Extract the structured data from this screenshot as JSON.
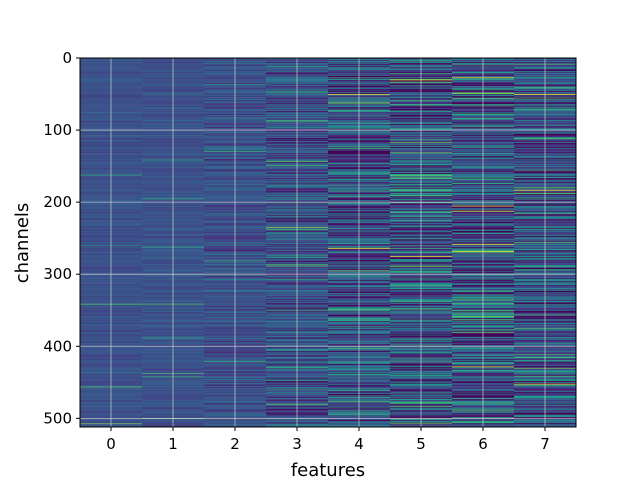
{
  "chart_data": {
    "type": "heatmap",
    "title": "",
    "xlabel": "features",
    "ylabel": "channels",
    "x_categories": [
      "0",
      "1",
      "2",
      "3",
      "4",
      "5",
      "6",
      "7"
    ],
    "y_range": [
      0,
      512
    ],
    "y_ticks": [
      "0",
      "100",
      "200",
      "300",
      "400",
      "500"
    ],
    "y_axis_inverted": true,
    "grid": true,
    "colormap": "viridis",
    "colors": {
      "low": "#440154",
      "background_typical": "#3b528b",
      "mid": "#21918c",
      "high": "#5ec962",
      "max": "#fde725",
      "grid": "#d9d9d9"
    },
    "column_intensity_spread": [
      0.08,
      0.1,
      0.18,
      0.3,
      0.45,
      0.5,
      0.5,
      0.45
    ],
    "highlight_rows": [
      {
        "feature": 0,
        "channel": 341,
        "level": "green"
      },
      {
        "feature": 1,
        "channel": 341,
        "level": "green"
      },
      {
        "feature": 3,
        "channel": 235,
        "level": "yellow-green"
      },
      {
        "feature": 4,
        "channel": 50,
        "level": "yellow"
      },
      {
        "feature": 4,
        "channel": 264,
        "level": "yellow"
      },
      {
        "feature": 4,
        "channel": 476,
        "level": "green"
      },
      {
        "feature": 5,
        "channel": 30,
        "level": "yellow"
      },
      {
        "feature": 5,
        "channel": 275,
        "level": "yellow"
      },
      {
        "feature": 6,
        "channel": 27,
        "level": "yellow"
      },
      {
        "feature": 6,
        "channel": 205,
        "level": "yellow"
      },
      {
        "feature": 6,
        "channel": 212,
        "level": "yellow"
      },
      {
        "feature": 6,
        "channel": 258,
        "level": "yellow"
      },
      {
        "feature": 6,
        "channel": 268,
        "level": "yellow"
      },
      {
        "feature": 6,
        "channel": 428,
        "level": "yellow"
      },
      {
        "feature": 7,
        "channel": 50,
        "level": "yellow"
      },
      {
        "feature": 7,
        "channel": 183,
        "level": "yellow"
      },
      {
        "feature": 7,
        "channel": 375,
        "level": "green"
      },
      {
        "feature": 7,
        "channel": 452,
        "level": "yellow"
      }
    ]
  }
}
